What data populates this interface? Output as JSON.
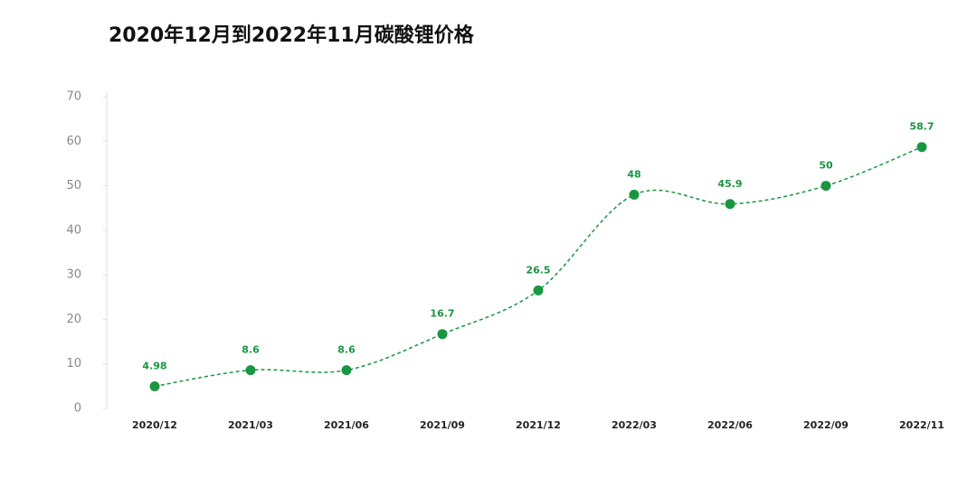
{
  "chart_data": {
    "type": "line",
    "title": "2020年12月到2022年11月碳酸锂价格",
    "categories": [
      "2020/12",
      "2021/03",
      "2021/06",
      "2021/09",
      "2021/12",
      "2022/03",
      "2022/06",
      "2022/09",
      "2022/11"
    ],
    "series": [
      {
        "name": "碳酸锂价格",
        "color": "#1a9641",
        "values": [
          4.98,
          8.6,
          8.6,
          16.7,
          26.5,
          48,
          45.9,
          50,
          58.7
        ]
      }
    ],
    "ylim": [
      0,
      70
    ],
    "yticks": [
      0,
      10,
      20,
      30,
      40,
      50,
      60,
      70
    ]
  }
}
